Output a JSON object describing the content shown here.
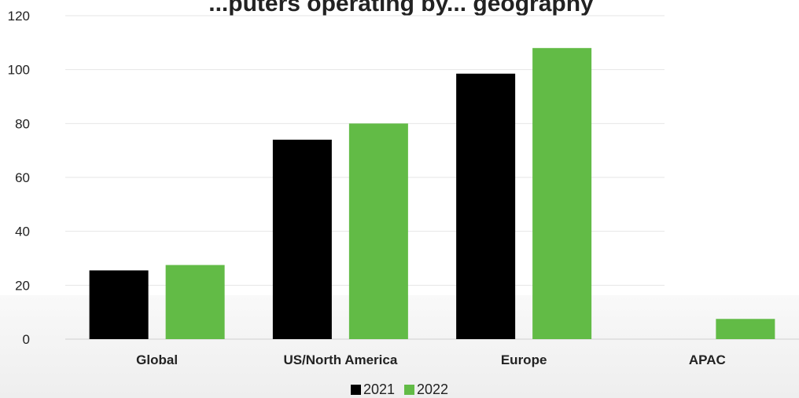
{
  "chart_data": {
    "type": "bar",
    "title": "...puters operating by... geography",
    "categories": [
      "Global",
      "US/North America",
      "Europe",
      "APAC"
    ],
    "series": [
      {
        "name": "2021",
        "values": [
          25.5,
          74,
          98.5,
          0
        ],
        "color": "#000000"
      },
      {
        "name": "2022",
        "values": [
          27.5,
          80,
          108,
          7.5
        ],
        "color": "#62bb46"
      }
    ],
    "yticks": [
      0,
      20,
      40,
      60,
      80,
      100,
      120
    ],
    "ylim": [
      0,
      120
    ],
    "grid": true,
    "legend_position": "bottom-center"
  }
}
